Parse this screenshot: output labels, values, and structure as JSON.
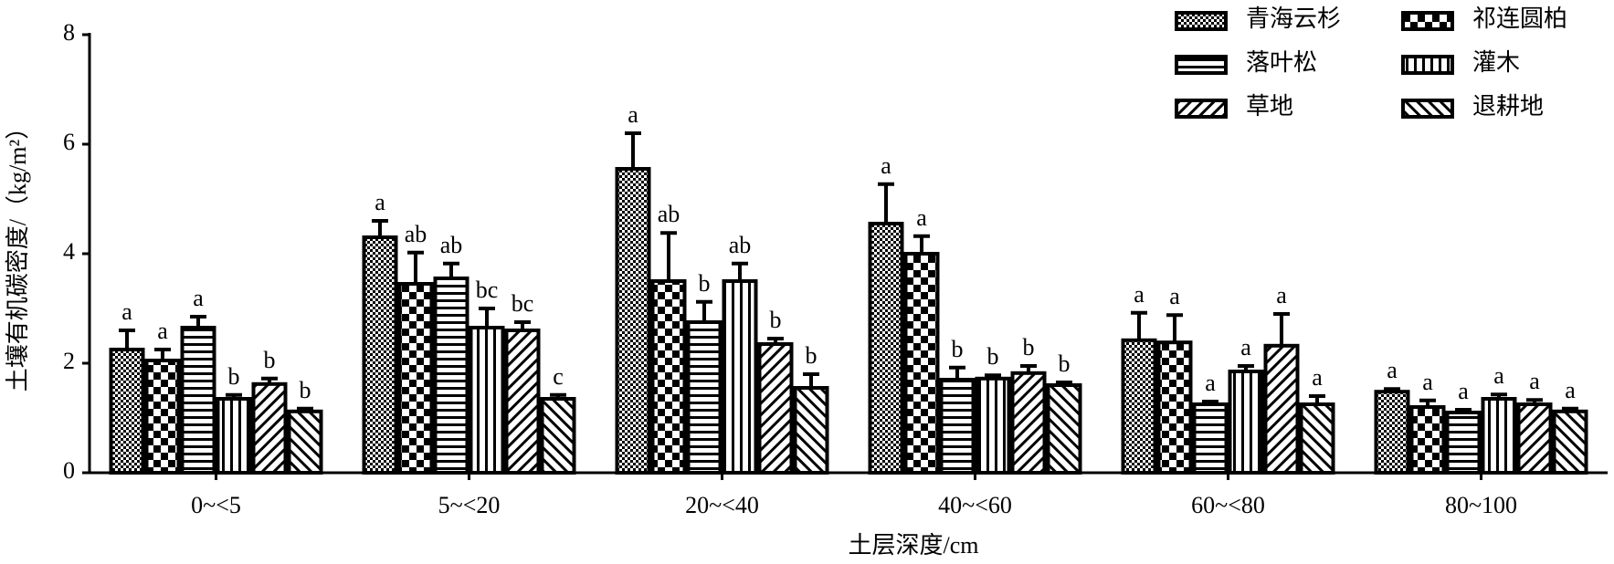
{
  "chart_data": {
    "type": "bar",
    "xlabel": "土层深度/cm",
    "ylabel": "土壤有机碳密度/（kg/m²）",
    "categories": [
      "0~<5",
      "5~<20",
      "20~<40",
      "40~<60",
      "60~<80",
      "80~100"
    ],
    "ylim": [
      0,
      8
    ],
    "yticks": [
      0,
      2,
      4,
      6,
      8
    ],
    "grid": false,
    "legend": "top-right",
    "series": [
      {
        "name": "青海云杉",
        "color": "#000000",
        "pattern": "dots",
        "values": [
          2.25,
          4.3,
          5.55,
          4.55,
          2.42,
          1.48
        ],
        "errors": [
          0.35,
          0.3,
          0.65,
          0.72,
          0.5,
          0.05
        ],
        "letters": [
          "a",
          "a",
          "a",
          "a",
          "a",
          "a"
        ]
      },
      {
        "name": "祁连圆柏",
        "color": "#000000",
        "pattern": "checker",
        "values": [
          2.05,
          3.45,
          3.5,
          4.0,
          2.38,
          1.2
        ],
        "errors": [
          0.2,
          0.57,
          0.88,
          0.32,
          0.5,
          0.12
        ],
        "letters": [
          "a",
          "ab",
          "ab",
          "a",
          "a",
          "a"
        ]
      },
      {
        "name": "落叶松",
        "color": "#000000",
        "pattern": "hlines",
        "values": [
          2.65,
          3.55,
          2.75,
          1.7,
          1.25,
          1.1
        ],
        "errors": [
          0.2,
          0.27,
          0.37,
          0.22,
          0.05,
          0.05
        ],
        "letters": [
          "a",
          "ab",
          "b",
          "b",
          "a",
          "a"
        ]
      },
      {
        "name": "灌木",
        "color": "#000000",
        "pattern": "vlines",
        "values": [
          1.35,
          2.65,
          3.5,
          1.72,
          1.85,
          1.35
        ],
        "errors": [
          0.07,
          0.35,
          0.32,
          0.06,
          0.1,
          0.08
        ],
        "letters": [
          "b",
          "bc",
          "ab",
          "b",
          "a",
          "a"
        ]
      },
      {
        "name": "草地",
        "color": "#000000",
        "pattern": "diag",
        "values": [
          1.62,
          2.6,
          2.35,
          1.82,
          2.32,
          1.25
        ],
        "errors": [
          0.1,
          0.15,
          0.1,
          0.13,
          0.58,
          0.08
        ],
        "letters": [
          "b",
          "bc",
          "b",
          "b",
          "a",
          "a"
        ]
      },
      {
        "name": "退耕地",
        "color": "#000000",
        "pattern": "antidiag",
        "values": [
          1.12,
          1.35,
          1.55,
          1.6,
          1.25,
          1.12
        ],
        "errors": [
          0.05,
          0.07,
          0.25,
          0.05,
          0.15,
          0.05
        ],
        "letters": [
          "b",
          "c",
          "b",
          "b",
          "a",
          "a"
        ]
      }
    ]
  }
}
